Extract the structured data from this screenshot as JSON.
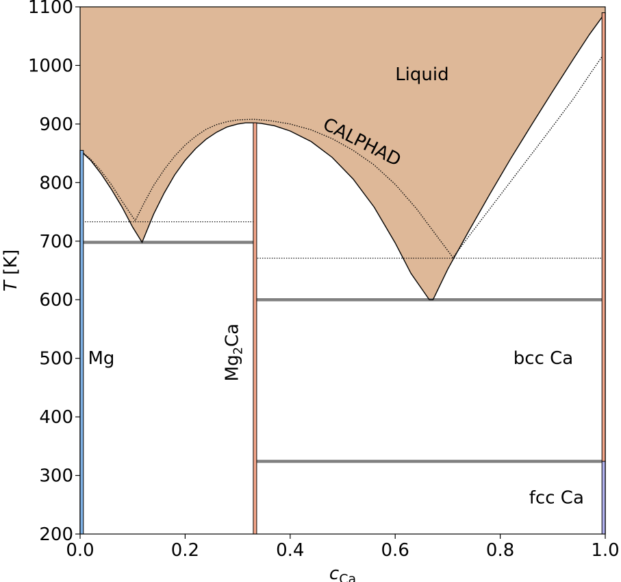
{
  "chart_data": {
    "type": "phase-diagram",
    "xlabel": "c",
    "xlabel_sub": "Ca",
    "ylabel": "T",
    "ylabel_unit": "[K]",
    "xlim": [
      0.0,
      1.0
    ],
    "ylim": [
      200,
      1100
    ],
    "x_ticks": [
      "0.0",
      "0.2",
      "0.4",
      "0.6",
      "0.8",
      "1.0"
    ],
    "y_ticks": [
      "200",
      "300",
      "400",
      "500",
      "600",
      "700",
      "800",
      "900",
      "1000",
      "1100"
    ],
    "colors": {
      "liquid_fill": "#deb898",
      "eutectic_line": "#808080",
      "mg_phase": "#7fb2e6",
      "mg2ca_phase": "#f4a68a",
      "ca_bcc_phase": "#f4a68a",
      "ca_fcc_phase": "#b3b3f0"
    },
    "labels": {
      "liquid": "Liquid",
      "calphad": "CALPHAD",
      "mg": "Mg",
      "mg2ca": "Mg",
      "mg2ca_sub": "2",
      "mg2ca_tail": "Ca",
      "bcc_ca": "bcc Ca",
      "fcc_ca": "fcc Ca"
    },
    "liquidus": [
      {
        "x": 0.0,
        "y": 855
      },
      {
        "x": 0.02,
        "y": 838
      },
      {
        "x": 0.04,
        "y": 815
      },
      {
        "x": 0.06,
        "y": 788
      },
      {
        "x": 0.08,
        "y": 758
      },
      {
        "x": 0.1,
        "y": 724
      },
      {
        "x": 0.118,
        "y": 698
      },
      {
        "x": 0.14,
        "y": 746
      },
      {
        "x": 0.16,
        "y": 782
      },
      {
        "x": 0.18,
        "y": 813
      },
      {
        "x": 0.2,
        "y": 838
      },
      {
        "x": 0.22,
        "y": 858
      },
      {
        "x": 0.24,
        "y": 874
      },
      {
        "x": 0.26,
        "y": 886
      },
      {
        "x": 0.28,
        "y": 895
      },
      {
        "x": 0.3,
        "y": 900
      },
      {
        "x": 0.315,
        "y": 902
      },
      {
        "x": 0.333,
        "y": 902
      },
      {
        "x": 0.345,
        "y": 901
      },
      {
        "x": 0.37,
        "y": 897
      },
      {
        "x": 0.4,
        "y": 888
      },
      {
        "x": 0.44,
        "y": 870
      },
      {
        "x": 0.48,
        "y": 843
      },
      {
        "x": 0.52,
        "y": 806
      },
      {
        "x": 0.56,
        "y": 758
      },
      {
        "x": 0.6,
        "y": 697
      },
      {
        "x": 0.63,
        "y": 645
      },
      {
        "x": 0.665,
        "y": 600
      },
      {
        "x": 0.672,
        "y": 600
      },
      {
        "x": 0.7,
        "y": 652
      },
      {
        "x": 0.74,
        "y": 717
      },
      {
        "x": 0.78,
        "y": 780
      },
      {
        "x": 0.82,
        "y": 841
      },
      {
        "x": 0.86,
        "y": 899
      },
      {
        "x": 0.9,
        "y": 956
      },
      {
        "x": 0.94,
        "y": 1012
      },
      {
        "x": 0.97,
        "y": 1053
      },
      {
        "x": 1.0,
        "y": 1090
      }
    ],
    "calphad_liquidus": [
      {
        "x": 0.0,
        "y": 855
      },
      {
        "x": 0.02,
        "y": 840
      },
      {
        "x": 0.04,
        "y": 820
      },
      {
        "x": 0.06,
        "y": 796
      },
      {
        "x": 0.08,
        "y": 768
      },
      {
        "x": 0.105,
        "y": 735
      },
      {
        "x": 0.12,
        "y": 762
      },
      {
        "x": 0.14,
        "y": 795
      },
      {
        "x": 0.16,
        "y": 822
      },
      {
        "x": 0.18,
        "y": 845
      },
      {
        "x": 0.2,
        "y": 864
      },
      {
        "x": 0.22,
        "y": 879
      },
      {
        "x": 0.24,
        "y": 891
      },
      {
        "x": 0.26,
        "y": 899
      },
      {
        "x": 0.28,
        "y": 904
      },
      {
        "x": 0.3,
        "y": 907
      },
      {
        "x": 0.33,
        "y": 908
      },
      {
        "x": 0.36,
        "y": 906
      },
      {
        "x": 0.4,
        "y": 900
      },
      {
        "x": 0.44,
        "y": 890
      },
      {
        "x": 0.48,
        "y": 875
      },
      {
        "x": 0.52,
        "y": 855
      },
      {
        "x": 0.56,
        "y": 830
      },
      {
        "x": 0.6,
        "y": 797
      },
      {
        "x": 0.64,
        "y": 756
      },
      {
        "x": 0.68,
        "y": 708
      },
      {
        "x": 0.71,
        "y": 672
      },
      {
        "x": 0.74,
        "y": 708
      },
      {
        "x": 0.78,
        "y": 755
      },
      {
        "x": 0.82,
        "y": 802
      },
      {
        "x": 0.86,
        "y": 849
      },
      {
        "x": 0.9,
        "y": 896
      },
      {
        "x": 0.94,
        "y": 944
      },
      {
        "x": 0.97,
        "y": 984
      },
      {
        "x": 1.0,
        "y": 1023
      }
    ],
    "eutectic_lines": [
      {
        "x1": 0.0,
        "x2": 0.333,
        "y": 698
      },
      {
        "x1": 0.333,
        "x2": 1.0,
        "y": 600
      },
      {
        "x1": 0.333,
        "x2": 1.0,
        "y": 324
      }
    ],
    "calphad_eutectics": [
      {
        "x1": 0.0,
        "x2": 0.333,
        "y": 733
      },
      {
        "x1": 0.333,
        "x2": 1.0,
        "y": 671
      }
    ],
    "phase_lines": [
      {
        "x": 0.003,
        "y1": 200,
        "y2": 855,
        "phase": "mg"
      },
      {
        "x": 0.333,
        "y1": 200,
        "y2": 902,
        "phase": "mg2ca"
      },
      {
        "x": 0.997,
        "y1": 324,
        "y2": 1090,
        "phase": "ca_bcc"
      },
      {
        "x": 0.997,
        "y1": 200,
        "y2": 324,
        "phase": "ca_fcc"
      }
    ]
  }
}
